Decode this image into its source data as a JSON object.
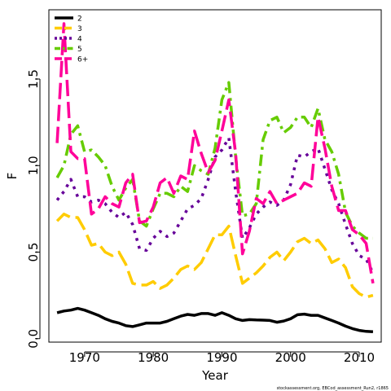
{
  "chart_data": {
    "type": "line",
    "xlabel": "Year",
    "ylabel": "F",
    "xlim": [
      1964.8,
      2013.2
    ],
    "ylim": [
      -0.02,
      1.9
    ],
    "x_ticks": [
      1970,
      1980,
      1990,
      2000,
      2010
    ],
    "y_ticks": [
      0.0,
      0.5,
      1.0,
      1.5
    ],
    "x_tick_labels": [
      "1970",
      "1980",
      "1990",
      "2000",
      "2010"
    ],
    "y_tick_labels": [
      "0.0",
      "0.5",
      "1.0",
      "1.5"
    ],
    "legend_placement": "top-left",
    "grid": false,
    "footnote": "stockassessment.org, EBCod_assessment_Run2, r1865",
    "x": [
      1966,
      1967,
      1968,
      1969,
      1970,
      1971,
      1972,
      1973,
      1974,
      1975,
      1976,
      1977,
      1978,
      1979,
      1980,
      1981,
      1982,
      1983,
      1984,
      1985,
      1986,
      1987,
      1988,
      1989,
      1990,
      1991,
      1992,
      1993,
      1994,
      1995,
      1996,
      1997,
      1998,
      1999,
      2000,
      2001,
      2002,
      2003,
      2004,
      2005,
      2006,
      2007,
      2008,
      2009,
      2010,
      2011,
      2012
    ],
    "series": [
      {
        "name": "2",
        "color": "#000000",
        "dash": "solid",
        "values": [
          0.15,
          0.16,
          0.165,
          0.175,
          0.165,
          0.15,
          0.135,
          0.115,
          0.1,
          0.09,
          0.075,
          0.07,
          0.08,
          0.09,
          0.09,
          0.09,
          0.1,
          0.115,
          0.13,
          0.14,
          0.135,
          0.145,
          0.145,
          0.135,
          0.15,
          0.135,
          0.115,
          0.105,
          0.11,
          0.108,
          0.107,
          0.105,
          0.095,
          0.102,
          0.115,
          0.138,
          0.142,
          0.135,
          0.135,
          0.12,
          0.105,
          0.09,
          0.072,
          0.058,
          0.048,
          0.042,
          0.04
        ]
      },
      {
        "name": "3",
        "color": "#FFCC00",
        "dash": "long",
        "values": [
          0.68,
          0.72,
          0.7,
          0.7,
          0.63,
          0.54,
          0.55,
          0.5,
          0.48,
          0.5,
          0.43,
          0.32,
          0.31,
          0.31,
          0.33,
          0.29,
          0.31,
          0.35,
          0.4,
          0.42,
          0.4,
          0.44,
          0.52,
          0.6,
          0.6,
          0.65,
          0.48,
          0.32,
          0.35,
          0.38,
          0.42,
          0.47,
          0.5,
          0.45,
          0.5,
          0.56,
          0.58,
          0.55,
          0.57,
          0.52,
          0.44,
          0.46,
          0.41,
          0.3,
          0.26,
          0.24,
          0.25
        ]
      },
      {
        "name": "4",
        "color": "#660099",
        "dash": "dot",
        "values": [
          0.8,
          0.85,
          0.92,
          0.82,
          0.82,
          0.79,
          0.8,
          0.78,
          0.73,
          0.7,
          0.73,
          0.66,
          0.52,
          0.51,
          0.58,
          0.62,
          0.59,
          0.61,
          0.68,
          0.75,
          0.77,
          0.81,
          0.92,
          1.05,
          1.09,
          1.16,
          0.85,
          0.58,
          0.64,
          0.72,
          0.76,
          0.79,
          0.77,
          0.8,
          0.89,
          1.06,
          1.05,
          1.08,
          1.1,
          0.98,
          0.86,
          0.78,
          0.66,
          0.55,
          0.48,
          0.46,
          0.38
        ]
      },
      {
        "name": "5",
        "color": "#66CC00",
        "dash": "dashdot",
        "values": [
          0.93,
          1.0,
          1.18,
          1.23,
          1.08,
          1.09,
          1.05,
          1.0,
          0.88,
          0.8,
          0.87,
          0.92,
          0.68,
          0.65,
          0.75,
          0.84,
          0.84,
          0.82,
          0.88,
          0.85,
          1.0,
          0.97,
          0.95,
          1.1,
          1.38,
          1.48,
          1.05,
          0.71,
          0.72,
          0.78,
          1.15,
          1.26,
          1.28,
          1.19,
          1.22,
          1.28,
          1.28,
          1.22,
          1.33,
          1.15,
          1.08,
          0.95,
          0.73,
          0.65,
          0.61,
          0.58,
          0.58
        ]
      },
      {
        "name": "6+",
        "color": "#FF0099",
        "dash": "long",
        "values": [
          1.13,
          1.82,
          1.08,
          1.04,
          1.04,
          0.72,
          0.75,
          0.82,
          0.78,
          0.76,
          0.9,
          0.95,
          0.67,
          0.68,
          0.76,
          0.9,
          0.93,
          0.84,
          0.94,
          0.92,
          1.2,
          1.07,
          0.96,
          1.03,
          1.2,
          1.38,
          1.07,
          0.49,
          0.62,
          0.81,
          0.78,
          0.85,
          0.78,
          0.8,
          0.82,
          0.84,
          0.9,
          0.88,
          1.28,
          1.1,
          0.88,
          0.74,
          0.74,
          0.63,
          0.6,
          0.55,
          0.32
        ]
      }
    ]
  }
}
